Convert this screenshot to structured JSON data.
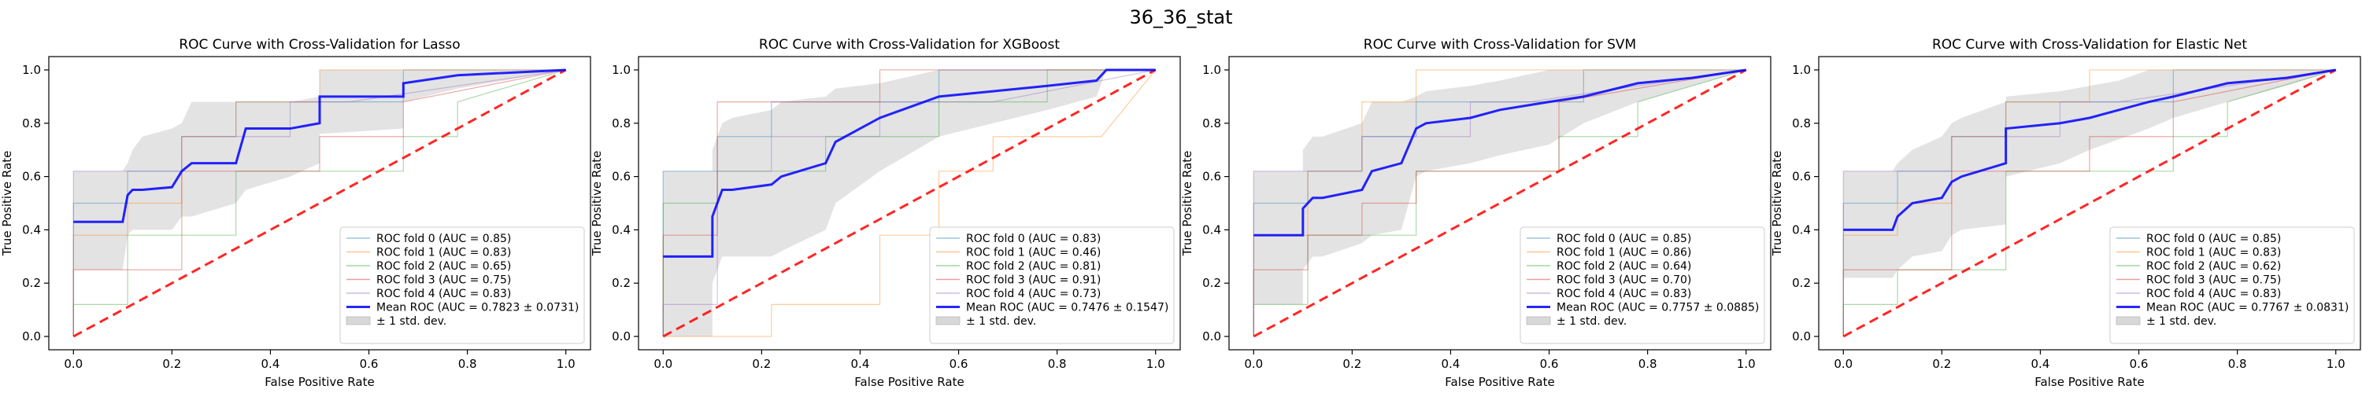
{
  "figure_title": "36_36_stat",
  "chart_data": [
    {
      "type": "line",
      "title": "ROC Curve with Cross-Validation for Lasso",
      "xlabel": "False Positive Rate",
      "ylabel": "True Positive Rate",
      "xlim": [
        -0.05,
        1.05
      ],
      "ylim": [
        -0.05,
        1.05
      ],
      "xticks": [
        "0.0",
        "0.2",
        "0.4",
        "0.6",
        "0.8",
        "1.0"
      ],
      "yticks": [
        "0.0",
        "0.2",
        "0.4",
        "0.6",
        "0.8",
        "1.0"
      ],
      "grid": false,
      "legend_position": "lower-right",
      "folds": [
        {
          "name": "ROC fold 0 (AUC = 0.85)",
          "color": "#1f77b4",
          "x": [
            0,
            0,
            0.11,
            0.11,
            0.22,
            0.22,
            0.33,
            0.33,
            0.67,
            0.67,
            1.0
          ],
          "y": [
            0,
            0.5,
            0.5,
            0.62,
            0.62,
            0.75,
            0.75,
            0.88,
            0.88,
            1.0,
            1.0
          ]
        },
        {
          "name": "ROC fold 1 (AUC = 0.83)",
          "color": "#ff7f0e",
          "x": [
            0,
            0,
            0.11,
            0.11,
            0.22,
            0.22,
            0.33,
            0.33,
            0.5,
            0.5,
            1.0
          ],
          "y": [
            0,
            0.38,
            0.38,
            0.5,
            0.5,
            0.75,
            0.75,
            0.88,
            0.88,
            1.0,
            1.0
          ]
        },
        {
          "name": "ROC fold 2 (AUC = 0.65)",
          "color": "#2ca02c",
          "x": [
            0,
            0,
            0.11,
            0.11,
            0.33,
            0.33,
            0.67,
            0.67,
            0.78,
            0.78,
            1.0
          ],
          "y": [
            0,
            0.12,
            0.12,
            0.38,
            0.38,
            0.62,
            0.62,
            0.75,
            0.75,
            0.88,
            1.0
          ]
        },
        {
          "name": "ROC fold 3 (AUC = 0.75)",
          "color": "#d62728",
          "x": [
            0,
            0,
            0.22,
            0.22,
            0.33,
            0.33,
            0.5,
            0.5,
            0.67,
            0.67,
            1.0
          ],
          "y": [
            0,
            0.25,
            0.25,
            0.62,
            0.62,
            0.62,
            0.62,
            0.75,
            0.75,
            0.88,
            1.0
          ]
        },
        {
          "name": "ROC fold 4 (AUC = 0.83)",
          "color": "#9467bd",
          "x": [
            0,
            0,
            0.11,
            0.11,
            0.22,
            0.22,
            0.44,
            0.44,
            0.56,
            0.56,
            1.0
          ],
          "y": [
            0,
            0.62,
            0.62,
            0.62,
            0.62,
            0.75,
            0.75,
            0.88,
            0.88,
            0.88,
            1.0
          ]
        }
      ],
      "mean": {
        "name": "Mean ROC (AUC = 0.7823 ± 0.0731)",
        "color": "#0000ff",
        "x": [
          0,
          0.1,
          0.11,
          0.12,
          0.14,
          0.2,
          0.22,
          0.24,
          0.33,
          0.35,
          0.44,
          0.5,
          0.5,
          0.67,
          0.67,
          0.78,
          1.0
        ],
        "y": [
          0.43,
          0.43,
          0.53,
          0.55,
          0.55,
          0.56,
          0.62,
          0.65,
          0.65,
          0.78,
          0.78,
          0.8,
          0.9,
          0.9,
          0.95,
          0.98,
          1.0
        ]
      },
      "std_upper": [
        0.62,
        0.62,
        0.65,
        0.7,
        0.75,
        0.78,
        0.8,
        0.88,
        0.88,
        0.88,
        0.88,
        0.9,
        1.0,
        1.0,
        1.0,
        1.0,
        1.0
      ],
      "std_lower": [
        0.25,
        0.25,
        0.38,
        0.4,
        0.4,
        0.4,
        0.45,
        0.45,
        0.5,
        0.55,
        0.6,
        0.65,
        0.76,
        0.78,
        0.88,
        0.93,
        1.0
      ],
      "chance_color": "#ff0000",
      "std_label": "± 1 std. dev."
    },
    {
      "type": "line",
      "title": "ROC Curve with Cross-Validation for XGBoost",
      "xlabel": "False Positive Rate",
      "ylabel": "True Positive Rate",
      "xlim": [
        -0.05,
        1.05
      ],
      "ylim": [
        -0.05,
        1.05
      ],
      "xticks": [
        "0.0",
        "0.2",
        "0.4",
        "0.6",
        "0.8",
        "1.0"
      ],
      "yticks": [
        "0.0",
        "0.2",
        "0.4",
        "0.6",
        "0.8",
        "1.0"
      ],
      "grid": false,
      "legend_position": "lower-right",
      "folds": [
        {
          "name": "ROC fold 0 (AUC = 0.83)",
          "color": "#1f77b4",
          "x": [
            0,
            0,
            0.11,
            0.11,
            0.22,
            0.22,
            0.33,
            0.33,
            0.56,
            0.56,
            1.0
          ],
          "y": [
            0,
            0.62,
            0.62,
            0.75,
            0.75,
            0.88,
            0.88,
            0.88,
            0.88,
            1.0,
            1.0
          ]
        },
        {
          "name": "ROC fold 1 (AUC = 0.46)",
          "color": "#ff7f0e",
          "x": [
            0,
            0.22,
            0.22,
            0.44,
            0.44,
            0.56,
            0.56,
            0.67,
            0.67,
            0.89,
            1.0
          ],
          "y": [
            0,
            0,
            0.12,
            0.12,
            0.38,
            0.38,
            0.62,
            0.62,
            0.75,
            0.75,
            1.0
          ]
        },
        {
          "name": "ROC fold 2 (AUC = 0.81)",
          "color": "#2ca02c",
          "x": [
            0,
            0,
            0.11,
            0.11,
            0.33,
            0.33,
            0.56,
            0.56,
            0.78,
            0.78,
            1.0
          ],
          "y": [
            0,
            0.5,
            0.5,
            0.62,
            0.62,
            0.75,
            0.75,
            0.88,
            0.88,
            1.0,
            1.0
          ]
        },
        {
          "name": "ROC fold 3 (AUC = 0.91)",
          "color": "#d62728",
          "x": [
            0,
            0,
            0.11,
            0.11,
            0.22,
            0.22,
            0.33,
            0.33,
            0.44,
            0.44,
            1.0
          ],
          "y": [
            0,
            0.38,
            0.38,
            0.88,
            0.88,
            0.88,
            0.88,
            0.88,
            0.88,
            1.0,
            1.0
          ]
        },
        {
          "name": "ROC fold 4 (AUC = 0.73)",
          "color": "#9467bd",
          "x": [
            0,
            0,
            0.11,
            0.11,
            0.22,
            0.22,
            0.44,
            0.44,
            0.67,
            0.67,
            1.0
          ],
          "y": [
            0,
            0.12,
            0.12,
            0.62,
            0.62,
            0.75,
            0.75,
            0.88,
            0.88,
            0.88,
            1.0
          ]
        }
      ],
      "mean": {
        "name": "Mean ROC (AUC = 0.7476 ± 0.1547)",
        "color": "#0000ff",
        "x": [
          0,
          0.1,
          0.1,
          0.11,
          0.12,
          0.14,
          0.22,
          0.24,
          0.33,
          0.35,
          0.44,
          0.56,
          0.67,
          0.78,
          0.88,
          0.9,
          1.0
        ],
        "y": [
          0.3,
          0.3,
          0.45,
          0.5,
          0.55,
          0.55,
          0.57,
          0.6,
          0.65,
          0.73,
          0.82,
          0.9,
          0.92,
          0.94,
          0.96,
          1.0,
          1.0
        ]
      },
      "std_upper": [
        0.62,
        0.62,
        0.7,
        0.75,
        0.8,
        0.82,
        0.85,
        0.88,
        0.9,
        0.93,
        0.95,
        1.0,
        1.0,
        1.0,
        1.0,
        1.0,
        1.0
      ],
      "std_lower": [
        0.0,
        0.0,
        0.2,
        0.25,
        0.3,
        0.3,
        0.3,
        0.32,
        0.4,
        0.5,
        0.62,
        0.75,
        0.8,
        0.85,
        0.9,
        1.0,
        1.0
      ],
      "chance_color": "#ff0000",
      "std_label": "± 1 std. dev."
    },
    {
      "type": "line",
      "title": "ROC Curve with Cross-Validation for SVM",
      "xlabel": "False Positive Rate",
      "ylabel": "True Positive Rate",
      "xlim": [
        -0.05,
        1.05
      ],
      "ylim": [
        -0.05,
        1.05
      ],
      "xticks": [
        "0.0",
        "0.2",
        "0.4",
        "0.6",
        "0.8",
        "1.0"
      ],
      "yticks": [
        "0.0",
        "0.2",
        "0.4",
        "0.6",
        "0.8",
        "1.0"
      ],
      "grid": false,
      "legend_position": "lower-right",
      "folds": [
        {
          "name": "ROC fold 0 (AUC = 0.85)",
          "color": "#1f77b4",
          "x": [
            0,
            0,
            0.11,
            0.11,
            0.22,
            0.22,
            0.33,
            0.33,
            0.67,
            0.67,
            1.0
          ],
          "y": [
            0,
            0.5,
            0.5,
            0.62,
            0.62,
            0.75,
            0.75,
            0.88,
            0.88,
            1.0,
            1.0
          ]
        },
        {
          "name": "ROC fold 1 (AUC = 0.86)",
          "color": "#ff7f0e",
          "x": [
            0,
            0,
            0.11,
            0.11,
            0.22,
            0.22,
            0.33,
            0.33,
            0.5,
            0.5,
            1.0
          ],
          "y": [
            0,
            0.38,
            0.38,
            0.62,
            0.62,
            0.88,
            0.88,
            1.0,
            1.0,
            1.0,
            1.0
          ]
        },
        {
          "name": "ROC fold 2 (AUC = 0.64)",
          "color": "#2ca02c",
          "x": [
            0,
            0,
            0.11,
            0.11,
            0.33,
            0.33,
            0.62,
            0.62,
            0.78,
            0.78,
            1.0
          ],
          "y": [
            0,
            0.12,
            0.12,
            0.38,
            0.38,
            0.62,
            0.62,
            0.75,
            0.75,
            0.88,
            1.0
          ]
        },
        {
          "name": "ROC fold 3 (AUC = 0.70)",
          "color": "#d62728",
          "x": [
            0,
            0,
            0.11,
            0.11,
            0.22,
            0.22,
            0.33,
            0.33,
            0.62,
            0.62,
            1.0
          ],
          "y": [
            0,
            0.25,
            0.25,
            0.38,
            0.38,
            0.5,
            0.5,
            0.62,
            0.62,
            0.88,
            1.0
          ]
        },
        {
          "name": "ROC fold 4 (AUC = 0.83)",
          "color": "#9467bd",
          "x": [
            0,
            0,
            0.11,
            0.11,
            0.22,
            0.22,
            0.44,
            0.44,
            0.56,
            0.56,
            1.0
          ],
          "y": [
            0,
            0.62,
            0.62,
            0.62,
            0.62,
            0.75,
            0.75,
            0.88,
            0.88,
            0.88,
            1.0
          ]
        }
      ],
      "mean": {
        "name": "Mean ROC (AUC = 0.7757 ± 0.0885)",
        "color": "#0000ff",
        "x": [
          0,
          0.1,
          0.1,
          0.12,
          0.14,
          0.22,
          0.24,
          0.3,
          0.33,
          0.35,
          0.44,
          0.5,
          0.6,
          0.67,
          0.78,
          0.89,
          1.0
        ],
        "y": [
          0.38,
          0.38,
          0.48,
          0.52,
          0.52,
          0.55,
          0.62,
          0.65,
          0.78,
          0.8,
          0.82,
          0.85,
          0.88,
          0.9,
          0.95,
          0.97,
          1.0
        ]
      },
      "std_upper": [
        0.62,
        0.62,
        0.7,
        0.75,
        0.75,
        0.8,
        0.88,
        0.88,
        0.9,
        0.92,
        0.94,
        0.96,
        1.0,
        1.0,
        1.0,
        1.0,
        1.0
      ],
      "std_lower": [
        0.12,
        0.12,
        0.25,
        0.3,
        0.3,
        0.35,
        0.38,
        0.4,
        0.6,
        0.62,
        0.65,
        0.68,
        0.72,
        0.8,
        0.88,
        0.94,
        1.0
      ],
      "chance_color": "#ff0000",
      "std_label": "± 1 std. dev."
    },
    {
      "type": "line",
      "title": "ROC Curve with Cross-Validation for Elastic Net",
      "xlabel": "False Positive Rate",
      "ylabel": "True Positive Rate",
      "xlim": [
        -0.05,
        1.05
      ],
      "ylim": [
        -0.05,
        1.05
      ],
      "xticks": [
        "0.0",
        "0.2",
        "0.4",
        "0.6",
        "0.8",
        "1.0"
      ],
      "yticks": [
        "0.0",
        "0.2",
        "0.4",
        "0.6",
        "0.8",
        "1.0"
      ],
      "grid": false,
      "legend_position": "lower-right",
      "folds": [
        {
          "name": "ROC fold 0 (AUC = 0.85)",
          "color": "#1f77b4",
          "x": [
            0,
            0,
            0.11,
            0.11,
            0.22,
            0.22,
            0.33,
            0.33,
            0.67,
            0.67,
            1.0
          ],
          "y": [
            0,
            0.5,
            0.5,
            0.62,
            0.62,
            0.75,
            0.75,
            0.88,
            0.88,
            1.0,
            1.0
          ]
        },
        {
          "name": "ROC fold 1 (AUC = 0.83)",
          "color": "#ff7f0e",
          "x": [
            0,
            0,
            0.11,
            0.11,
            0.22,
            0.22,
            0.33,
            0.33,
            0.5,
            0.5,
            1.0
          ],
          "y": [
            0,
            0.38,
            0.38,
            0.5,
            0.5,
            0.75,
            0.75,
            0.88,
            0.88,
            1.0,
            1.0
          ]
        },
        {
          "name": "ROC fold 2 (AUC = 0.62)",
          "color": "#2ca02c",
          "x": [
            0,
            0,
            0.11,
            0.11,
            0.33,
            0.33,
            0.67,
            0.67,
            0.78,
            0.78,
            1.0
          ],
          "y": [
            0,
            0.12,
            0.12,
            0.25,
            0.25,
            0.62,
            0.62,
            0.75,
            0.75,
            0.88,
            1.0
          ]
        },
        {
          "name": "ROC fold 3 (AUC = 0.75)",
          "color": "#d62728",
          "x": [
            0,
            0,
            0.22,
            0.22,
            0.33,
            0.33,
            0.5,
            0.5,
            0.67,
            0.67,
            1.0
          ],
          "y": [
            0,
            0.25,
            0.25,
            0.62,
            0.62,
            0.62,
            0.62,
            0.75,
            0.75,
            0.88,
            1.0
          ]
        },
        {
          "name": "ROC fold 4 (AUC = 0.83)",
          "color": "#9467bd",
          "x": [
            0,
            0,
            0.11,
            0.11,
            0.22,
            0.22,
            0.44,
            0.44,
            0.56,
            0.56,
            1.0
          ],
          "y": [
            0,
            0.62,
            0.62,
            0.62,
            0.62,
            0.75,
            0.75,
            0.88,
            0.88,
            0.88,
            1.0
          ]
        }
      ],
      "mean": {
        "name": "Mean ROC (AUC = 0.7767 ± 0.0831)",
        "color": "#0000ff",
        "x": [
          0,
          0.1,
          0.11,
          0.14,
          0.2,
          0.22,
          0.24,
          0.33,
          0.33,
          0.44,
          0.5,
          0.56,
          0.62,
          0.67,
          0.78,
          0.9,
          1.0
        ],
        "y": [
          0.4,
          0.4,
          0.45,
          0.5,
          0.52,
          0.58,
          0.6,
          0.65,
          0.78,
          0.8,
          0.82,
          0.85,
          0.88,
          0.9,
          0.95,
          0.97,
          1.0
        ]
      },
      "std_upper": [
        0.62,
        0.62,
        0.65,
        0.7,
        0.75,
        0.8,
        0.82,
        0.88,
        0.9,
        0.92,
        0.94,
        0.96,
        1.0,
        1.0,
        1.0,
        1.0,
        1.0
      ],
      "std_lower": [
        0.22,
        0.22,
        0.25,
        0.3,
        0.32,
        0.38,
        0.4,
        0.42,
        0.6,
        0.65,
        0.7,
        0.74,
        0.78,
        0.82,
        0.88,
        0.94,
        1.0
      ],
      "chance_color": "#ff0000",
      "std_label": "± 1 std. dev."
    }
  ]
}
